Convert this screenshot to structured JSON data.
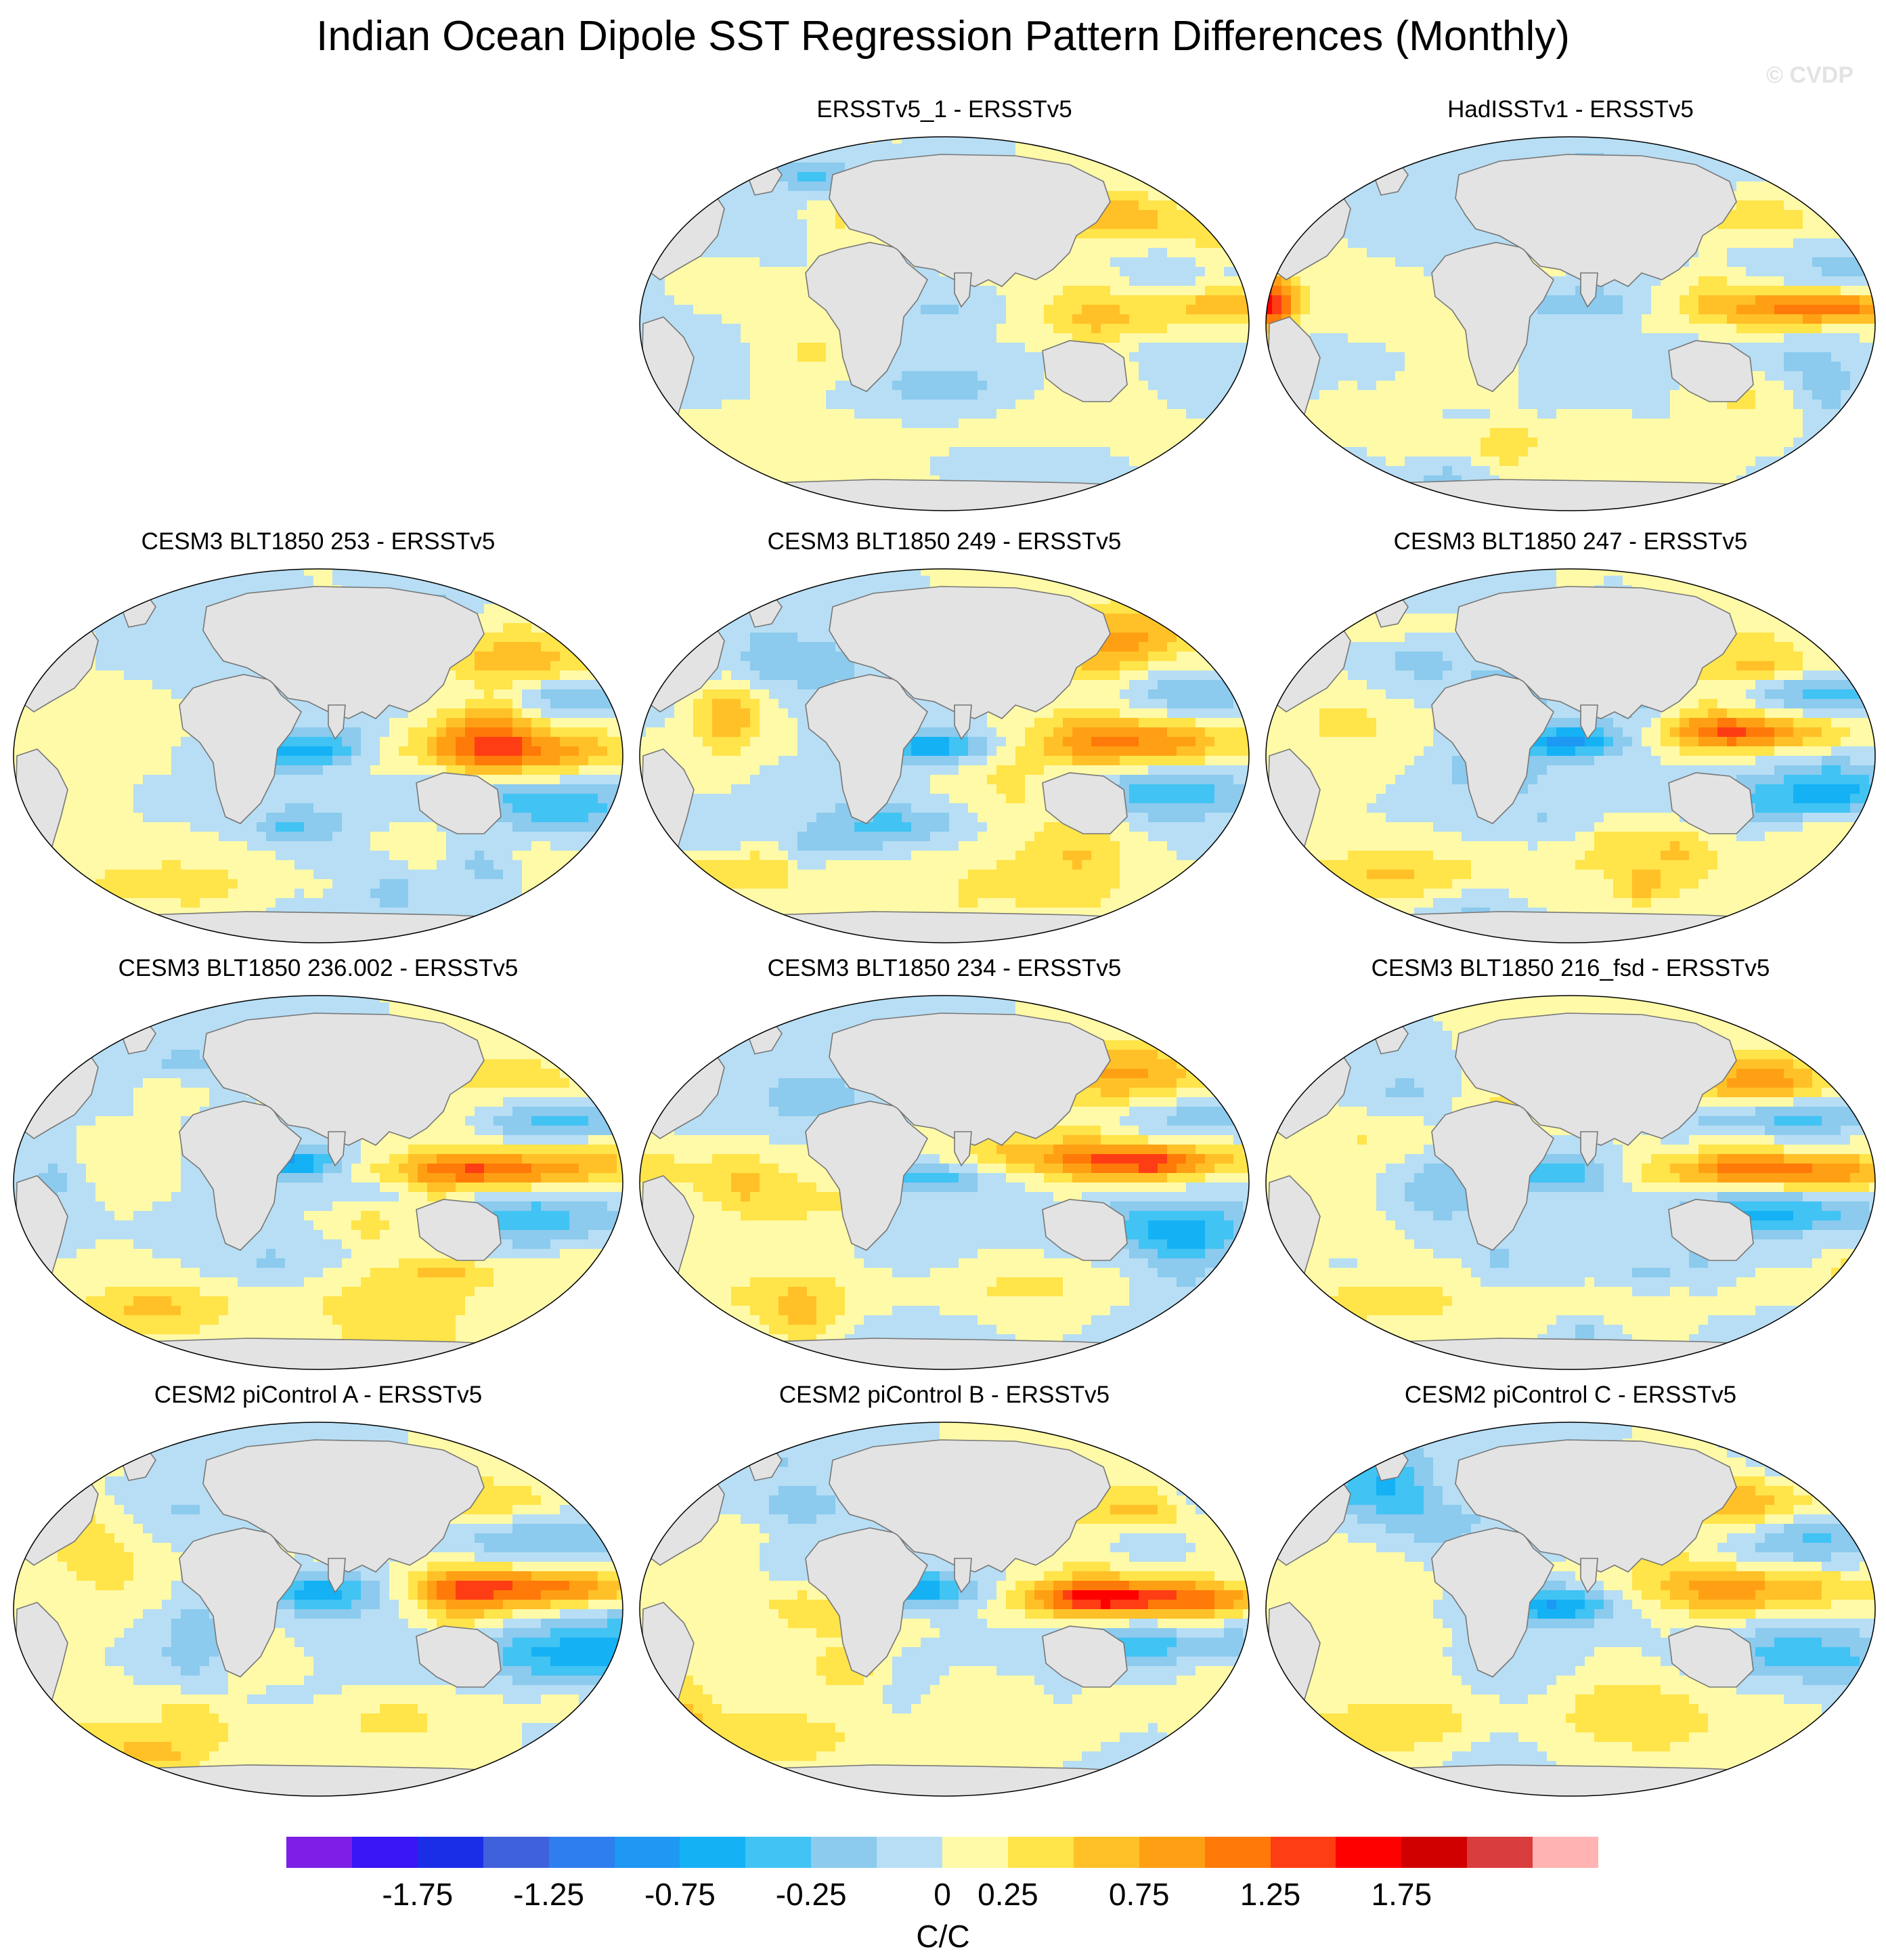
{
  "title": "Indian Ocean Dipole SST Regression Pattern Differences (Monthly)",
  "watermark": "© CVDP",
  "panels": [
    {
      "label": "ERSSTv5_1 - ERSSTv5",
      "variant": 0
    },
    {
      "label": "HadISSTv1 - ERSSTv5",
      "variant": 1
    },
    {
      "label": "CESM3 BLT1850 253 - ERSSTv5",
      "variant": 2
    },
    {
      "label": "CESM3 BLT1850 249 - ERSSTv5",
      "variant": 3
    },
    {
      "label": "CESM3 BLT1850 247 - ERSSTv5",
      "variant": 4
    },
    {
      "label": "CESM3 BLT1850 236.002 - ERSSTv5",
      "variant": 5
    },
    {
      "label": "CESM3 BLT1850 234 - ERSSTv5",
      "variant": 6
    },
    {
      "label": "CESM3 BLT1850 216_fsd - ERSSTv5",
      "variant": 7
    },
    {
      "label": "CESM2 piControl A - ERSSTv5",
      "variant": 8
    },
    {
      "label": "CESM2 piControl B - ERSSTv5",
      "variant": 9
    },
    {
      "label": "CESM2 piControl C - ERSSTv5",
      "variant": 10
    }
  ],
  "colorbar": {
    "colors": [
      "#7d1fe6",
      "#3a15f5",
      "#1a2ee8",
      "#4061dc",
      "#2f7ef0",
      "#1e98f2",
      "#14b2f5",
      "#41c3f3",
      "#8ccaee",
      "#b7def4",
      "#fffaa8",
      "#ffe44a",
      "#ffc127",
      "#ffa014",
      "#ff7a08",
      "#ff3d14",
      "#ff0000",
      "#d10000",
      "#d93d3d",
      "#ffb3b3"
    ],
    "tick_labels": [
      "-1.75",
      "-1.25",
      "-0.75",
      "-0.25",
      "0",
      "0.25",
      "0.75",
      "1.25",
      "1.75"
    ],
    "units": "C/C"
  },
  "land_color": "#e3e3e3"
}
